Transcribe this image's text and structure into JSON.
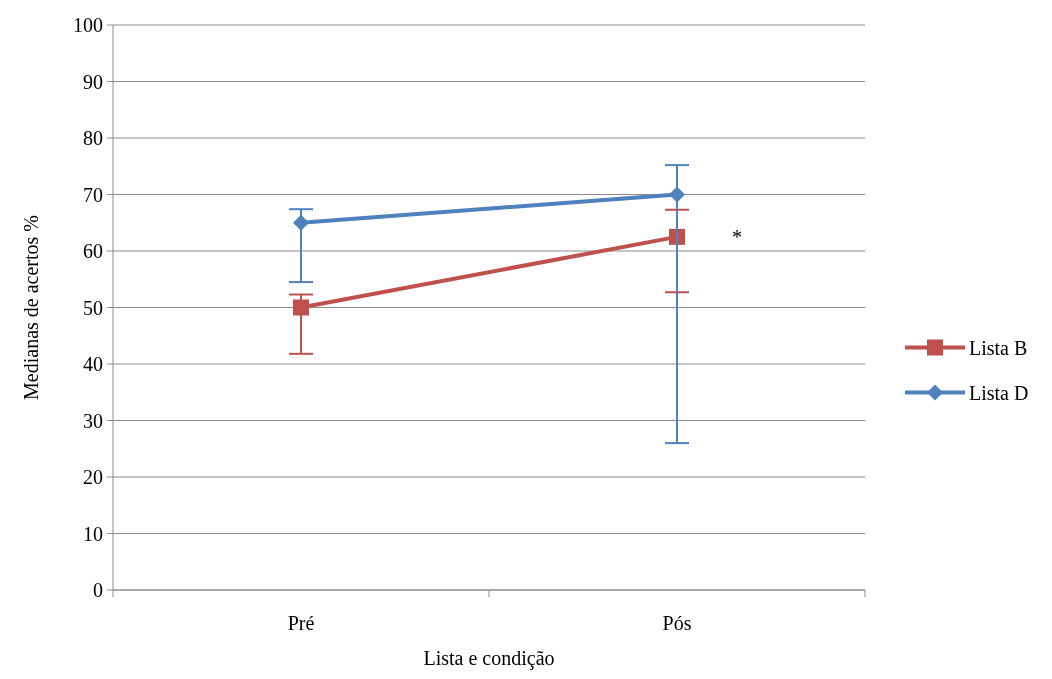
{
  "chart_data": {
    "type": "line",
    "xlabel": "Lista e condição",
    "ylabel": "Medianas de acertos %",
    "categories": [
      "Pré",
      "Pós"
    ],
    "series": [
      {
        "name": "Lista B",
        "color": "#c0504d",
        "marker": "square",
        "values": [
          50,
          62.5
        ],
        "errors": [
          [
            41.8,
            52.3
          ],
          [
            52.7,
            67.3
          ]
        ]
      },
      {
        "name": "Lista D",
        "color": "#4f81bd",
        "marker": "diamond",
        "values": [
          65,
          70
        ],
        "errors": [
          [
            54.5,
            67.4
          ],
          [
            26,
            75.2
          ]
        ]
      }
    ],
    "ylim": [
      0,
      100
    ],
    "yticks": [
      0,
      10,
      20,
      30,
      40,
      50,
      60,
      70,
      80,
      90,
      100
    ],
    "grid": "y",
    "legend": "right",
    "annotations": [
      "*"
    ]
  }
}
